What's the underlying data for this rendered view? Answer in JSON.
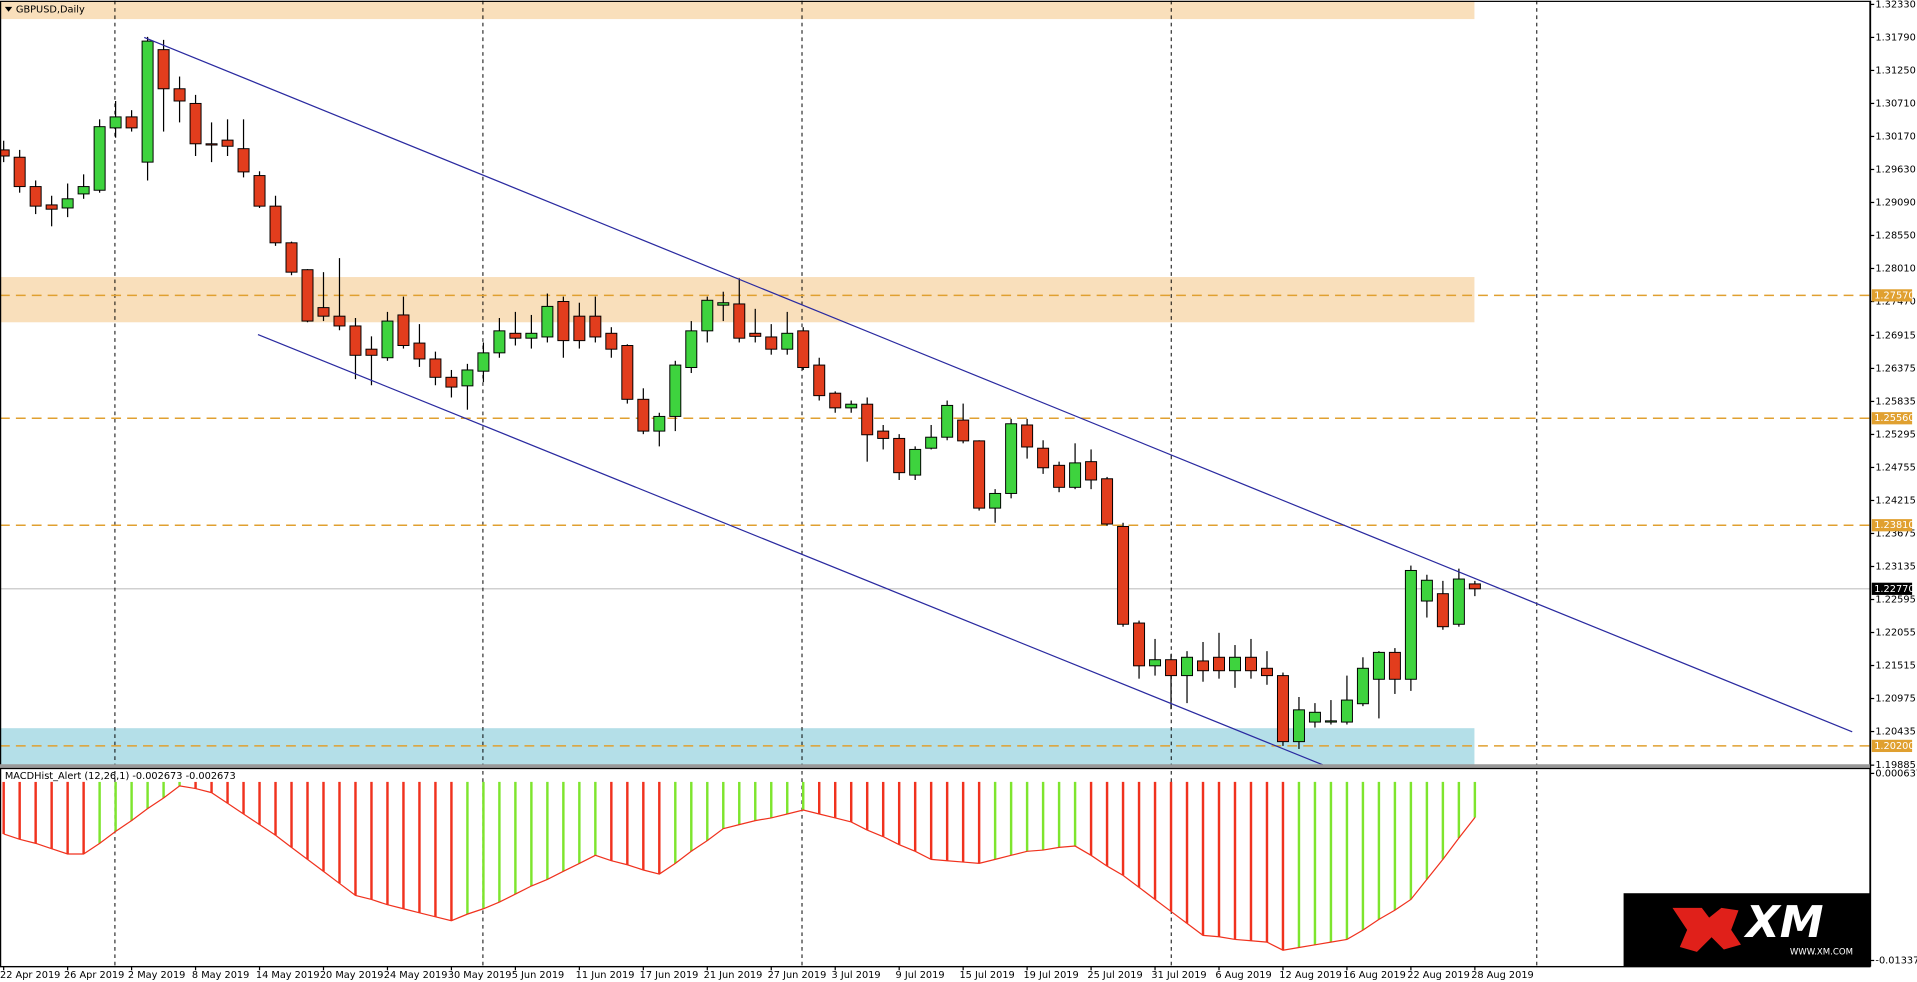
{
  "chart_data": [
    {
      "type": "candlestick",
      "title": "GBPUSD,Daily",
      "categories": [
        "22 Apr 2019",
        null,
        null,
        null,
        "26 Apr 2019",
        null,
        null,
        null,
        "2 May 2019",
        null,
        null,
        null,
        "8 May 2019",
        null,
        null,
        null,
        "14 May 2019",
        null,
        null,
        null,
        "20 May 2019",
        null,
        null,
        null,
        "24 May 2019",
        null,
        null,
        null,
        "30 May 2019",
        null,
        null,
        null,
        "5 Jun 2019",
        null,
        null,
        null,
        "11 Jun 2019",
        null,
        null,
        null,
        "17 Jun 2019",
        null,
        null,
        null,
        "21 Jun 2019",
        null,
        null,
        null,
        "27 Jun 2019",
        null,
        null,
        null,
        "3 Jul 2019",
        null,
        null,
        null,
        "9 Jul 2019",
        null,
        null,
        null,
        "15 Jul 2019",
        null,
        null,
        null,
        "19 Jul 2019",
        null,
        null,
        null,
        "25 Jul 2019",
        null,
        null,
        null,
        "31 Jul 2019",
        null,
        null,
        null,
        "6 Aug 2019",
        null,
        null,
        null,
        "12 Aug 2019",
        null,
        null,
        null,
        "16 Aug 2019",
        null,
        null,
        null,
        "22 Aug 2019",
        null,
        null,
        null,
        "28 Aug 2019"
      ],
      "open": [
        1.2995,
        1.2983,
        1.2935,
        1.2905,
        1.29,
        1.2923,
        1.2929,
        1.3031,
        1.3049,
        1.2975,
        1.3159,
        1.3095,
        1.3071,
        1.3005,
        1.3011,
        1.2997,
        1.2953,
        1.2903,
        1.2843,
        1.2799,
        1.2737,
        1.2723,
        1.2707,
        1.2669,
        1.2655,
        1.2725,
        1.2679,
        1.2653,
        1.2623,
        1.2609,
        1.2633,
        1.2663,
        1.2695,
        1.2687,
        1.2689,
        1.2747,
        1.2723,
        1.2723,
        1.2695,
        1.2675,
        1.2587,
        1.2535,
        1.2559,
        1.2639,
        1.2699,
        1.2741,
        1.2743,
        1.2695,
        1.2689,
        1.2669,
        1.2699,
        1.2643,
        1.2597,
        1.2573,
        1.2579,
        1.2535,
        1.2523,
        1.2463,
        1.2507,
        1.2525,
        1.2553,
        1.2519,
        1.2409,
        1.2433,
        1.2545,
        1.2507,
        1.2479,
        1.2443,
        1.2485,
        1.2457,
        1.2379,
        1.2221,
        1.2151,
        1.2161,
        1.2135,
        1.2159,
        1.2165,
        1.2143,
        1.2165,
        1.2147,
        1.2135,
        1.2027,
        1.2059,
        1.2061,
        1.2059,
        1.2089,
        1.2129,
        1.2173,
        1.2129,
        1.2257,
        1.2269,
        1.2219,
        1.2285
      ],
      "high": [
        1.301,
        1.2995,
        1.2945,
        1.292,
        1.294,
        1.2955,
        1.3045,
        1.3075,
        1.306,
        1.318,
        1.3175,
        1.3115,
        1.3085,
        1.304,
        1.3045,
        1.3045,
        1.296,
        1.292,
        1.2845,
        1.28,
        1.2795,
        1.2818,
        1.272,
        1.269,
        1.273,
        1.2755,
        1.271,
        1.2665,
        1.2635,
        1.2645,
        1.268,
        1.272,
        1.273,
        1.2725,
        1.276,
        1.2755,
        1.2745,
        1.2755,
        1.2705,
        1.2677,
        1.2605,
        1.2565,
        1.265,
        1.2715,
        1.2755,
        1.2763,
        1.2785,
        1.2735,
        1.271,
        1.273,
        1.2705,
        1.2655,
        1.26,
        1.2585,
        1.259,
        1.2545,
        1.253,
        1.251,
        1.2545,
        1.2585,
        1.258,
        1.252,
        1.244,
        1.2555,
        1.2555,
        1.252,
        1.2485,
        1.2515,
        1.2505,
        1.246,
        1.2385,
        1.2225,
        1.2195,
        1.217,
        1.2175,
        1.219,
        1.2205,
        1.2185,
        1.2195,
        1.2175,
        1.214,
        1.21,
        1.209,
        1.2095,
        1.2135,
        1.2165,
        1.2175,
        1.218,
        1.2315,
        1.23,
        1.229,
        1.231,
        1.229
      ],
      "low": [
        1.2975,
        1.2925,
        1.289,
        1.287,
        1.2885,
        1.2915,
        1.2925,
        1.3015,
        1.3025,
        1.2945,
        1.3025,
        1.304,
        1.2985,
        1.2975,
        1.2985,
        1.295,
        1.29,
        1.2838,
        1.279,
        1.2713,
        1.2715,
        1.27,
        1.262,
        1.261,
        1.265,
        1.267,
        1.264,
        1.261,
        1.259,
        1.257,
        1.2615,
        1.2655,
        1.2675,
        1.267,
        1.268,
        1.2655,
        1.267,
        1.268,
        1.2655,
        1.258,
        1.253,
        1.251,
        1.2535,
        1.263,
        1.268,
        1.2715,
        1.268,
        1.268,
        1.266,
        1.266,
        1.2635,
        1.2585,
        1.2565,
        1.2565,
        1.2485,
        1.2505,
        1.2455,
        1.2455,
        1.2505,
        1.252,
        1.2515,
        1.2405,
        1.2385,
        1.2425,
        1.249,
        1.2465,
        1.2435,
        1.244,
        1.244,
        1.238,
        1.2215,
        1.213,
        1.2135,
        1.208,
        1.209,
        1.2125,
        1.213,
        1.2115,
        1.213,
        1.212,
        1.202,
        1.2015,
        1.205,
        1.2055,
        1.2055,
        1.2085,
        1.2065,
        1.2105,
        1.211,
        1.223,
        1.221,
        1.2215,
        1.2265
      ],
      "close": [
        1.2985,
        1.2935,
        1.2903,
        1.2898,
        1.2915,
        1.2935,
        1.3033,
        1.3049,
        1.3031,
        1.3173,
        1.3095,
        1.3075,
        1.3005,
        1.3004,
        1.3001,
        1.2959,
        1.2903,
        1.2843,
        1.2795,
        1.2715,
        1.2723,
        1.2707,
        1.2659,
        1.2659,
        1.2715,
        1.2675,
        1.2653,
        1.2623,
        1.2607,
        1.2635,
        1.2663,
        1.2699,
        1.2687,
        1.2695,
        1.2739,
        1.2683,
        1.2683,
        1.2689,
        1.2669,
        1.2587,
        1.2535,
        1.2559,
        1.2643,
        1.2699,
        1.2749,
        1.2745,
        1.2687,
        1.269,
        1.2669,
        1.2695,
        1.2639,
        1.2593,
        1.2573,
        1.2579,
        1.2529,
        1.2523,
        1.2467,
        1.2505,
        1.2525,
        1.2577,
        1.2519,
        1.2409,
        1.2433,
        1.2547,
        1.2509,
        1.2475,
        1.2443,
        1.2483,
        1.2455,
        1.2383,
        1.2219,
        1.2151,
        1.2161,
        1.2135,
        1.2165,
        1.2143,
        1.2143,
        1.2165,
        1.2143,
        1.2135,
        1.2027,
        1.2079,
        1.2075,
        1.2061,
        1.2095,
        1.2147,
        1.2173,
        1.2129,
        1.2307,
        1.2291,
        1.2215,
        1.2293,
        1.2277
      ],
      "up_color": "#3ed33e",
      "down_color": "#e23d1d",
      "ylim": [
        1.1989,
        1.3239
      ],
      "yticks": [
        {
          "value": 1.3233,
          "label": "1.32330"
        },
        {
          "value": 1.3179,
          "label": "1.31790"
        },
        {
          "value": 1.3125,
          "label": "1.31250"
        },
        {
          "value": 1.3071,
          "label": "1.30710"
        },
        {
          "value": 1.3017,
          "label": "1.30170"
        },
        {
          "value": 1.2963,
          "label": "1.29630"
        },
        {
          "value": 1.2909,
          "label": "1.29090"
        },
        {
          "value": 1.2855,
          "label": "1.28550"
        },
        {
          "value": 1.2801,
          "label": "1.28010"
        },
        {
          "value": 1.2747,
          "label": "1.27470"
        },
        1.26915,
        1.26375,
        1.25835,
        1.25295,
        1.24755,
        1.24215,
        1.23675,
        1.23135,
        1.22595,
        1.22055,
        1.21515,
        1.20975,
        1.20435,
        1.19885
      ],
      "levels": [
        {
          "value": 1.2757,
          "label": "1.27570"
        },
        {
          "value": 1.2556,
          "label": "1.25560"
        },
        {
          "value": 1.2381,
          "label": "1.23810"
        },
        {
          "value": 1.202,
          "label": "1.20200"
        }
      ],
      "level_color": "#e0a030",
      "current_price": {
        "value": 1.2277,
        "label": "1.22770"
      },
      "zones": [
        {
          "from": 1.3209,
          "to": 1.3239,
          "color": "#f9dfbb"
        },
        {
          "from": 1.2713,
          "to": 1.2787,
          "color": "#f9dfbb"
        },
        {
          "from": 1.1989,
          "to": 1.2049,
          "color": "#b4dfe8"
        }
      ]
    },
    {
      "type": "histogram",
      "title": "MACDHist_Alert (12,26,1) -0.002673 -0.002673",
      "values": [
        -0.0039,
        -0.0043,
        -0.0046,
        -0.005,
        -0.0054,
        -0.0054,
        -0.0046,
        -0.0037,
        -0.0029,
        -0.002,
        -0.0012,
        -0.0003,
        -0.0005,
        -0.0008,
        -0.0016,
        -0.0024,
        -0.0032,
        -0.004,
        -0.0049,
        -0.0058,
        -0.0067,
        -0.0076,
        -0.0085,
        -0.0088,
        -0.0092,
        -0.0095,
        -0.0098,
        -0.0101,
        -0.0104,
        -0.0099,
        -0.0095,
        -0.009,
        -0.0084,
        -0.0078,
        -0.0073,
        -0.0067,
        -0.0061,
        -0.0055,
        -0.0059,
        -0.0062,
        -0.0066,
        -0.0069,
        -0.0061,
        -0.0052,
        -0.0044,
        -0.0035,
        -0.0032,
        -0.0029,
        -0.0027,
        -0.0024,
        -0.0021,
        -0.0024,
        -0.0027,
        -0.003,
        -0.0036,
        -0.0041,
        -0.0047,
        -0.0052,
        -0.0058,
        -0.0059,
        -0.006,
        -0.0061,
        -0.0058,
        -0.0055,
        -0.0052,
        -0.0051,
        -0.0049,
        -0.0048,
        -0.0055,
        -0.0063,
        -0.007,
        -0.0079,
        -0.0088,
        -0.0097,
        -0.0106,
        -0.0115,
        -0.0116,
        -0.0118,
        -0.0119,
        -0.012,
        -0.0126,
        -0.0124,
        -0.0122,
        -0.012,
        -0.0118,
        -0.0111,
        -0.0103,
        -0.0096,
        -0.0088,
        -0.0073,
        -0.0058,
        -0.0042,
        -0.002673
      ],
      "up_color": "#7ee52e",
      "down_color": "#f0321e",
      "line_color": "#f0321e",
      "ylim": [
        -0.013373,
        0.000637
      ],
      "yticks": [
        0.000637,
        -0.013373
      ]
    }
  ],
  "logo": {
    "brand": "XM",
    "url": "WWW.XM.COM"
  }
}
